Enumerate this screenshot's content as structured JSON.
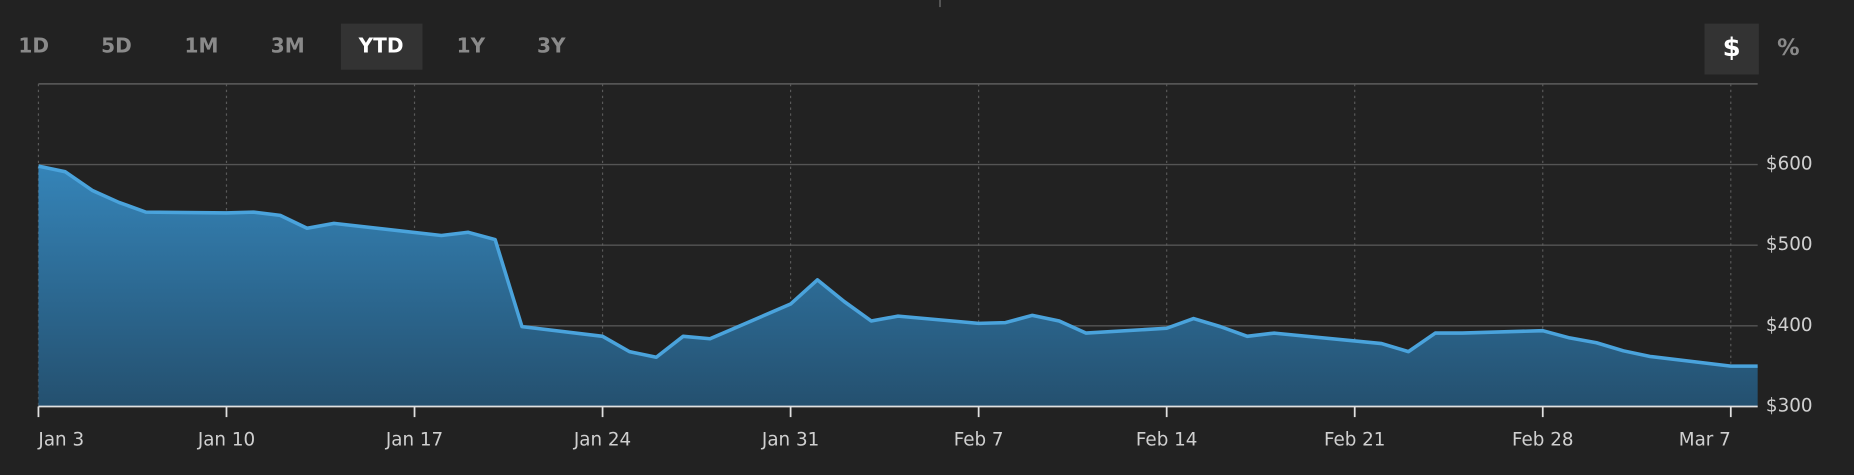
{
  "range_buttons": {
    "labels": [
      "1D",
      "5D",
      "1M",
      "3M",
      "YTD",
      "1Y",
      "3Y"
    ],
    "active": 4
  },
  "unit_buttons": {
    "labels": [
      "$",
      "%"
    ],
    "active": 0
  },
  "chart_data": {
    "type": "area",
    "color": "#4aa3dc",
    "x": [
      "Jan 3",
      "Jan 4",
      "Jan 5",
      "Jan 6",
      "Jan 7",
      "Jan 10",
      "Jan 11",
      "Jan 12",
      "Jan 13",
      "Jan 14",
      "Jan 18",
      "Jan 19",
      "Jan 20",
      "Jan 21",
      "Jan 24",
      "Jan 25",
      "Jan 26",
      "Jan 27",
      "Jan 28",
      "Jan 31",
      "Feb 1",
      "Feb 2",
      "Feb 3",
      "Feb 4",
      "Feb 7",
      "Feb 8",
      "Feb 9",
      "Feb 10",
      "Feb 11",
      "Feb 14",
      "Feb 15",
      "Feb 16",
      "Feb 17",
      "Feb 18",
      "Feb 22",
      "Feb 23",
      "Feb 24",
      "Feb 25",
      "Feb 28",
      "Mar 1",
      "Mar 2",
      "Mar 3",
      "Mar 4",
      "Mar 7",
      "Mar 8"
    ],
    "values": [
      598,
      591,
      568,
      553,
      541,
      540,
      541,
      537,
      521,
      527,
      512,
      516,
      507,
      399,
      387,
      368,
      361,
      387,
      384,
      427,
      457,
      430,
      406,
      412,
      403,
      404,
      413,
      406,
      391,
      397,
      409,
      399,
      387,
      391,
      378,
      368,
      391,
      391,
      394,
      385,
      379,
      369,
      362,
      350,
      350
    ],
    "xlim": [
      "Jan 3",
      "Mar 8"
    ],
    "xticks": [
      "Jan 3",
      "Jan 10",
      "Jan 17",
      "Jan 24",
      "Jan 31",
      "Feb 7",
      "Feb 14",
      "Feb 21",
      "Feb 28",
      "Mar 7"
    ],
    "ylim": [
      300,
      700
    ],
    "yticks": [
      {
        "value": 300,
        "label": "$300"
      },
      {
        "value": 400,
        "label": "$400"
      },
      {
        "value": 500,
        "label": "$500"
      },
      {
        "value": 600,
        "label": "$600"
      }
    ],
    "grid": true
  }
}
